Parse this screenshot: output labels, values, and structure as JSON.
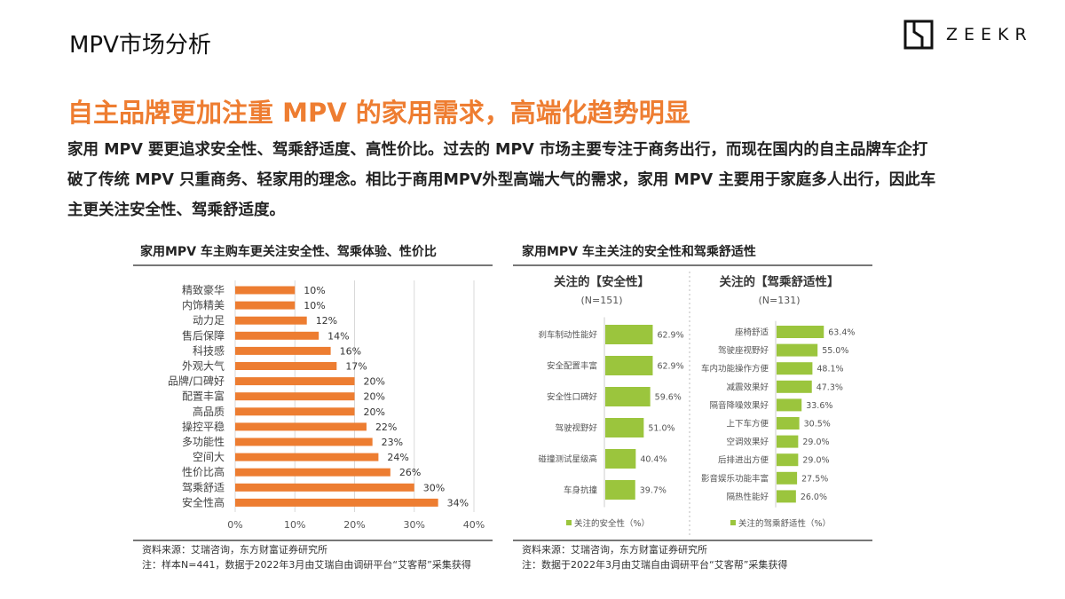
{
  "header": {
    "title": "MPV市场分析",
    "logo_text": "ZEEKR"
  },
  "headline": "自主品牌更加注重 MPV 的家用需求，高端化趋势明显",
  "paragraph_lines": [
    "家用 MPV 要更追求安全性、驾乘舒适度、高性价比。过去的 MPV 市场主要专注于商务出行，而现在国内的自主品牌车企打",
    "破了传统 MPV 只重商务、轻家用的理念。相比于商用MPV外型高端大气的需求，家用 MPV 主要用于家庭多人出行，因此车",
    "主更关注安全性、驾乘舒适度。"
  ],
  "colors": {
    "accent": "#ee7d31",
    "bar_orange": "#ed7d31",
    "bar_green": "#9bc53d"
  },
  "left_panel": {
    "title": "家用MPV 车主购车更关注安全性、驾乘体验、性价比",
    "source": "资料来源：艾瑞咨询，东方财富证券研究所",
    "note": "注：样本N=441，数据于2022年3月由艾瑞自由调研平台“艾客帮”采集获得"
  },
  "right_panel": {
    "title": "家用MPV 车主关注的安全性和驾乘舒适性",
    "source": "资料来源：艾瑞咨询，东方财富证券研究所",
    "note": "注：数据于2022年3月由艾瑞自由调研平台“艾客帮”采集获得"
  },
  "chart_data": [
    {
      "type": "bar",
      "orientation": "horizontal",
      "categories": [
        "精致豪华",
        "内饰精美",
        "动力足",
        "售后保障",
        "科技感",
        "外观大气",
        "品牌/口碑好",
        "配置丰富",
        "高品质",
        "操控平稳",
        "多功能性",
        "空间大",
        "性价比高",
        "驾乘舒适",
        "安全性高"
      ],
      "values": [
        10,
        10,
        12,
        14,
        16,
        17,
        20,
        20,
        20,
        22,
        23,
        24,
        26,
        30,
        34
      ],
      "value_labels": [
        "10%",
        "10%",
        "12%",
        "14%",
        "16%",
        "17%",
        "20%",
        "20%",
        "20%",
        "22%",
        "23%",
        "24%",
        "26%",
        "30%",
        "34%"
      ],
      "xlim": [
        0,
        40
      ],
      "xticks": [
        "0%",
        "10%",
        "20%",
        "30%",
        "40%"
      ],
      "grid": true,
      "color": "#ed7d31"
    },
    {
      "type": "bar",
      "orientation": "horizontal",
      "title": "关注的【安全性】",
      "subtitle": "(N=151)",
      "categories": [
        "刹车制动性能好",
        "安全配置丰富",
        "安全性口碑好",
        "驾驶视野好",
        "碰撞测试星级高",
        "车身抗撞"
      ],
      "values": [
        62.9,
        62.9,
        59.6,
        51.0,
        40.4,
        39.7
      ],
      "value_labels": [
        "62.9%",
        "62.9%",
        "59.6%",
        "51.0%",
        "40.4%",
        "39.7%"
      ],
      "legend": "关注的安全性（%）",
      "legend_position": "bottom",
      "color": "#9bc53d"
    },
    {
      "type": "bar",
      "orientation": "horizontal",
      "title": "关注的【驾乘舒适性】",
      "subtitle": "(N=131)",
      "categories": [
        "座椅舒适",
        "驾驶座视野好",
        "车内功能操作方便",
        "减震效果好",
        "隔音降噪效果好",
        "上下车方便",
        "空调效果好",
        "后排进出方便",
        "影音娱乐功能丰富",
        "隔热性能好"
      ],
      "values": [
        63.4,
        55.0,
        48.1,
        47.3,
        33.6,
        30.5,
        29.0,
        29.0,
        27.5,
        26.0
      ],
      "value_labels": [
        "63.4%",
        "55.0%",
        "48.1%",
        "47.3%",
        "33.6%",
        "30.5%",
        "29.0%",
        "29.0%",
        "27.5%",
        "26.0%"
      ],
      "legend": "关注的驾乘舒适性（%）",
      "legend_position": "bottom",
      "color": "#9bc53d"
    }
  ]
}
